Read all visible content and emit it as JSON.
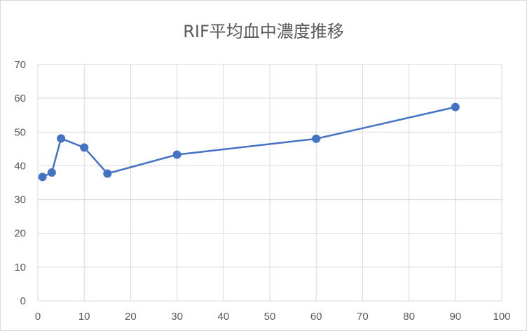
{
  "chart_data": {
    "type": "scatter",
    "title": "RIF平均血中濃度推移",
    "xlabel": "",
    "ylabel": "",
    "xlim": [
      0,
      100
    ],
    "ylim": [
      0,
      70
    ],
    "xticks": [
      0,
      10,
      20,
      30,
      40,
      50,
      60,
      70,
      80,
      90,
      100
    ],
    "yticks": [
      0,
      10,
      20,
      30,
      40,
      50,
      60,
      70
    ],
    "grid": true,
    "legend": "none",
    "series": [
      {
        "x": [
          1,
          3,
          5,
          10,
          15,
          30,
          60,
          90
        ],
        "y": [
          36.7,
          38,
          48.1,
          45.4,
          37.7,
          43.3,
          48,
          57.4
        ],
        "color": "#4472c4",
        "lines": true,
        "markers": true
      }
    ]
  }
}
